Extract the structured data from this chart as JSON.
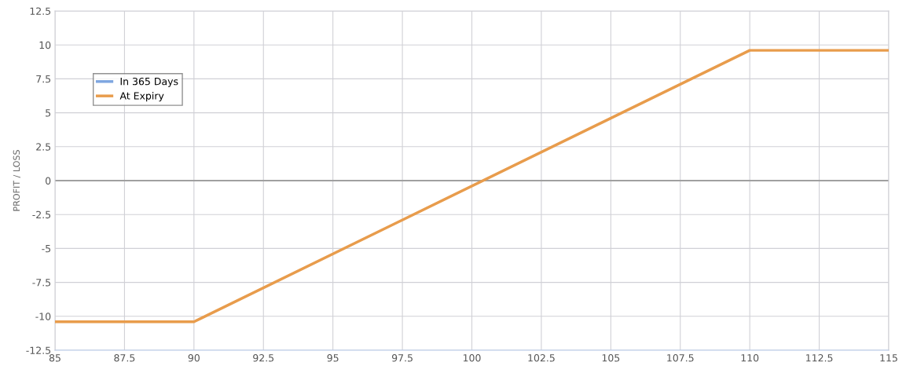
{
  "chart_data": {
    "type": "line",
    "ylabel": "PROFIT / LOSS",
    "x": [
      85,
      90,
      110,
      115
    ],
    "series": [
      {
        "name": "In 365 Days",
        "color": "#7ea6e0",
        "values": [
          null,
          null,
          null,
          null
        ]
      },
      {
        "name": "At Expiry",
        "color": "#e89c4c",
        "values": [
          -10.4,
          -10.4,
          9.6,
          9.6
        ]
      }
    ],
    "xlim": [
      85,
      115
    ],
    "xticks": [
      85,
      87.5,
      90,
      92.5,
      95,
      97.5,
      100,
      102.5,
      105,
      107.5,
      110,
      112.5,
      115
    ],
    "ylim": [
      -12.5,
      12.5
    ],
    "yticks": [
      -12.5,
      -10,
      -7.5,
      -5,
      -2.5,
      0,
      2.5,
      5,
      7.5,
      10,
      12.5
    ],
    "ref_lines": [
      {
        "axis": "y",
        "value": 0,
        "color": "#a0a0a0"
      }
    ],
    "grid": true,
    "legend": "top left",
    "marker": "none",
    "line_style": "solid"
  }
}
